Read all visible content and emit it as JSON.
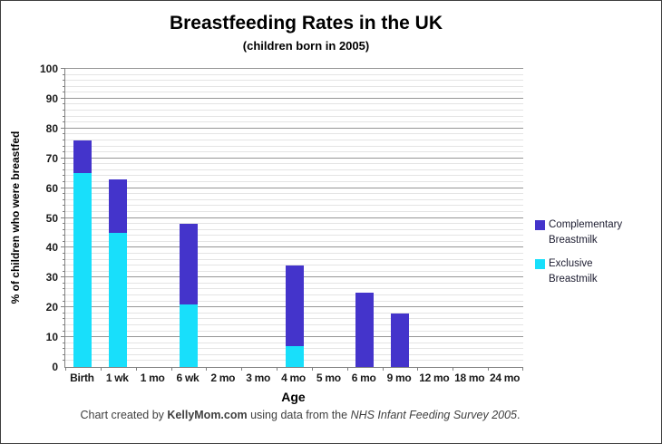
{
  "chart_data": {
    "type": "bar",
    "stacked": true,
    "title": "Breastfeeding Rates in the UK",
    "subtitle": "(children born in 2005)",
    "xlabel": "Age",
    "ylabel": "% of children who were breastfed",
    "categories": [
      "Birth",
      "1 wk",
      "1 mo",
      "6 wk",
      "2 mo",
      "3 mo",
      "4 mo",
      "5 mo",
      "6 mo",
      "9 mo",
      "12 mo",
      "18 mo",
      "24 mo"
    ],
    "series": [
      {
        "name": "Exclusive Breastmilk",
        "color": "#18dffb",
        "values": [
          65,
          45,
          0,
          21,
          0,
          0,
          7,
          0,
          0,
          0,
          0,
          0,
          0
        ]
      },
      {
        "name": "Complementary Breastmilk",
        "color": "#4434cb",
        "values": [
          11,
          18,
          0,
          27,
          0,
          0,
          27,
          0,
          25,
          18,
          0,
          0,
          0
        ]
      }
    ],
    "ylim": [
      0,
      100
    ],
    "yticks": [
      0,
      10,
      20,
      30,
      40,
      50,
      60,
      70,
      80,
      90,
      100
    ],
    "minor_tick_step": 2,
    "grid": true,
    "legend_position": "right"
  },
  "legend": {
    "items": [
      {
        "line1": "Complementary",
        "line2": "Breastmilk",
        "color": "#4434cb"
      },
      {
        "line1": "Exclusive",
        "line2": "Breastmilk",
        "color": "#18dffb"
      }
    ]
  },
  "caption": {
    "prefix": "Chart created by ",
    "brand": "KellyMom.com",
    "middle": " using data from the ",
    "source": "NHS Infant Feeding Survey 2005",
    "suffix": "."
  },
  "colors": {
    "complementary": "#4434cb",
    "exclusive": "#18dffb",
    "grid_major": "#969696",
    "grid_minor": "#e4e4e4",
    "axis": "#808080",
    "caption_text": "#3f3f3f",
    "frame_border": "#3d3d3d"
  }
}
